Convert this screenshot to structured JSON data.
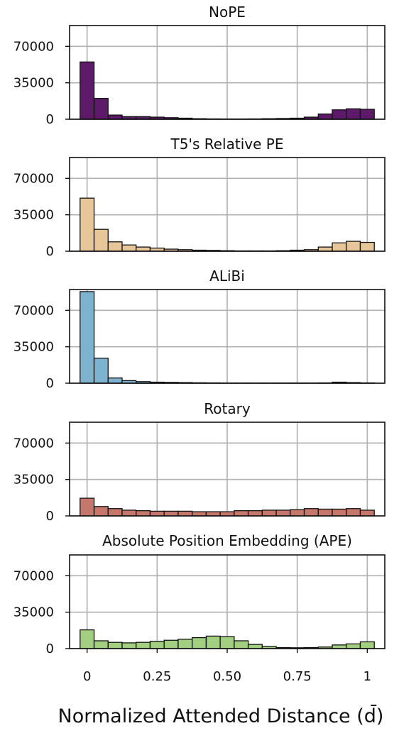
{
  "chart_data": {
    "type": "bar",
    "bins_start": -0.025,
    "bin_width": 0.05,
    "bins_count": 21,
    "ylim": [
      0,
      90000
    ],
    "xlim": [
      -0.0625,
      1.0625
    ],
    "yticks": [
      0,
      35000,
      70000
    ],
    "ytick_labels": [
      "0",
      "35000",
      "70000"
    ],
    "xticks": [
      0,
      0.25,
      0.5,
      0.75,
      1
    ],
    "xtick_labels": [
      "0",
      "0.25",
      "0.50",
      "0.75",
      "1"
    ],
    "xlabel": "Normalized Attended Distance (d̄)",
    "grid": true,
    "panels": [
      {
        "title": "NoPE",
        "color": "#5c1a68",
        "values": [
          55000,
          20000,
          4000,
          2500,
          2500,
          2000,
          1500,
          1000,
          500,
          300,
          200,
          200,
          300,
          500,
          700,
          1000,
          2000,
          5000,
          9000,
          10000,
          9500
        ]
      },
      {
        "title": "T5's Relative PE",
        "color": "#e7c79a",
        "values": [
          51000,
          21000,
          9000,
          6000,
          4000,
          3000,
          2000,
          1500,
          1000,
          800,
          500,
          300,
          300,
          300,
          500,
          1000,
          1500,
          4000,
          8000,
          9500,
          8500
        ]
      },
      {
        "title": "ALiBi",
        "color": "#7eb3d0",
        "values": [
          88000,
          24000,
          5000,
          2500,
          1500,
          1000,
          800,
          600,
          400,
          300,
          200,
          200,
          200,
          200,
          200,
          200,
          200,
          300,
          1000,
          600,
          300
        ]
      },
      {
        "title": "Rotary",
        "color": "#c6776b",
        "values": [
          17000,
          9000,
          7000,
          5500,
          5000,
          4500,
          4500,
          4500,
          4000,
          4000,
          4000,
          5000,
          5000,
          5500,
          5500,
          6000,
          7000,
          6500,
          6500,
          7000,
          5500
        ]
      },
      {
        "title": "Absolute Position Embedding (APE)",
        "color": "#a3cf80",
        "values": [
          18000,
          7500,
          6000,
          5500,
          6000,
          7000,
          8000,
          9000,
          10500,
          12000,
          11500,
          7500,
          4000,
          2000,
          1000,
          800,
          1000,
          1500,
          3500,
          4500,
          6500
        ]
      }
    ]
  }
}
